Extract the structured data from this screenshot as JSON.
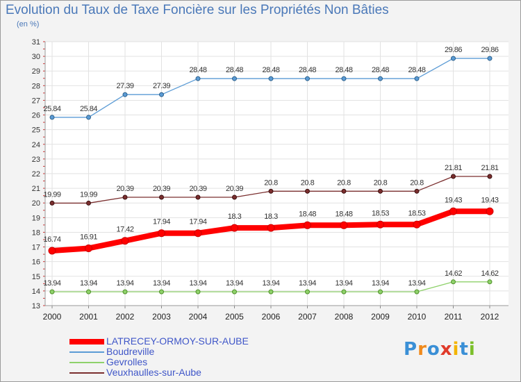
{
  "chart_data": {
    "type": "line",
    "title": "Evolution du Taux de Taxe Foncière sur les Propriétés Non Bâties",
    "ylabel": "(en %)",
    "xlabel": "",
    "ylim": [
      13,
      31
    ],
    "yticks": [
      13,
      14,
      15,
      16,
      17,
      18,
      19,
      20,
      21,
      22,
      23,
      24,
      25,
      26,
      27,
      28,
      29,
      30,
      31
    ],
    "categories": [
      "2000",
      "2001",
      "2002",
      "2003",
      "2004",
      "2005",
      "2006",
      "2007",
      "2008",
      "2009",
      "2010",
      "2011",
      "2012"
    ],
    "series": [
      {
        "name": "LATRECEY-ORMOY-SUR-AUBE",
        "color": "#ff0000",
        "values": [
          16.74,
          16.91,
          17.42,
          17.94,
          17.94,
          18.3,
          18.3,
          18.48,
          18.48,
          18.53,
          18.53,
          19.43,
          19.43
        ],
        "labels": [
          "16.74",
          "16.91",
          "17.42",
          "17.94",
          "17.94",
          "18.3",
          "18.3",
          "18.48",
          "18.48",
          "18.53",
          "18.53",
          "19.43",
          "19.43"
        ]
      },
      {
        "name": "Boudreville",
        "color": "#5b9bd5",
        "values": [
          25.84,
          25.84,
          27.39,
          27.39,
          28.48,
          28.48,
          28.48,
          28.48,
          28.48,
          28.48,
          28.48,
          29.86,
          29.86
        ],
        "labels": [
          "25.84",
          "25.84",
          "27.39",
          "27.39",
          "28.48",
          "28.48",
          "28.48",
          "28.48",
          "28.48",
          "28.48",
          "28.48",
          "29.86",
          "29.86"
        ]
      },
      {
        "name": "Gevrolles",
        "color": "#8ed16a",
        "values": [
          13.94,
          13.94,
          13.94,
          13.94,
          13.94,
          13.94,
          13.94,
          13.94,
          13.94,
          13.94,
          13.94,
          14.62,
          14.62
        ],
        "labels": [
          "13.94",
          "13.94",
          "13.94",
          "13.94",
          "13.94",
          "13.94",
          "13.94",
          "13.94",
          "13.94",
          "13.94",
          "13.94",
          "14.62",
          "14.62"
        ]
      },
      {
        "name": "Veuxhaulles-sur-Aube",
        "color": "#7a2e2e",
        "values": [
          19.99,
          19.99,
          20.39,
          20.39,
          20.39,
          20.39,
          20.8,
          20.8,
          20.8,
          20.8,
          20.8,
          21.81,
          21.81
        ],
        "labels": [
          "19.99",
          "19.99",
          "20.39",
          "20.39",
          "20.39",
          "20.39",
          "20.8",
          "20.8",
          "20.8",
          "20.8",
          "20.8",
          "21.81",
          "21.81"
        ]
      }
    ]
  },
  "logo": {
    "text": "Proxiti"
  }
}
